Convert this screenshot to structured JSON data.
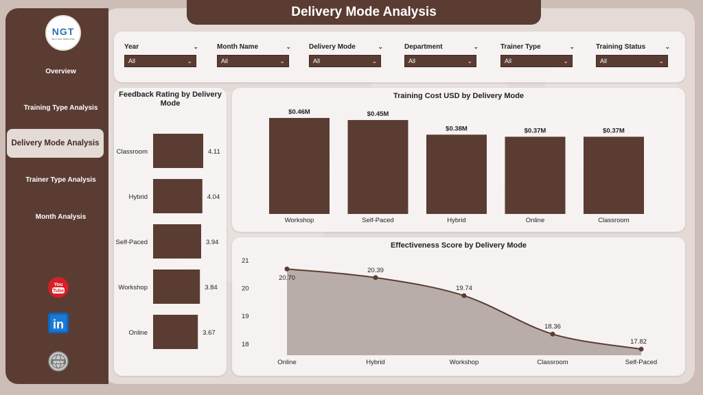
{
  "page_title": "Delivery Mode Analysis",
  "logo": {
    "text": "NGT",
    "subtext": "NEXT GEN TEMPLATES"
  },
  "nav": [
    {
      "label": "Overview",
      "active": false
    },
    {
      "label": "Training Type Analysis",
      "active": false
    },
    {
      "label": "Delivery Mode Analysis",
      "active": true
    },
    {
      "label": "Trainer Type Analysis",
      "active": false
    },
    {
      "label": "Month Analysis",
      "active": false
    }
  ],
  "social": [
    {
      "name": "youtube",
      "label": "You Tube"
    },
    {
      "name": "linkedin",
      "label": "in"
    },
    {
      "name": "website",
      "label": "WWW"
    }
  ],
  "filters": [
    {
      "label": "Year",
      "value": "All"
    },
    {
      "label": "Month Name",
      "value": "All"
    },
    {
      "label": "Delivery Mode",
      "value": "All"
    },
    {
      "label": "Department",
      "value": "All"
    },
    {
      "label": "Trainer Type",
      "value": "All"
    },
    {
      "label": "Training Status",
      "value": "All"
    }
  ],
  "colors": {
    "brand": "#5a3c33",
    "background": "#e4dbd7",
    "area": "#b3a5a1"
  },
  "chart_data": [
    {
      "type": "bar",
      "orientation": "horizontal",
      "title": "Feedback Rating by Delivery Mode",
      "categories": [
        "Classroom",
        "Hybrid",
        "Self-Paced",
        "Workshop",
        "Online"
      ],
      "values": [
        4.11,
        4.04,
        3.94,
        3.84,
        3.67
      ],
      "labels": [
        "4.11",
        "4.04",
        "3.94",
        "3.84",
        "3.67"
      ]
    },
    {
      "type": "bar",
      "title": "Training Cost USD by Delivery Mode",
      "categories": [
        "Workshop",
        "Self-Paced",
        "Hybrid",
        "Online",
        "Classroom"
      ],
      "values": [
        0.46,
        0.45,
        0.38,
        0.37,
        0.37
      ],
      "labels": [
        "$0.46M",
        "$0.45M",
        "$0.38M",
        "$0.37M",
        "$0.37M"
      ]
    },
    {
      "type": "area",
      "title": "Effectiveness Score by Delivery Mode",
      "categories": [
        "Online",
        "Hybrid",
        "Workshop",
        "Classroom",
        "Self-Paced"
      ],
      "values": [
        20.7,
        20.39,
        19.74,
        18.36,
        17.82
      ],
      "labels": [
        "20.70",
        "20.39",
        "19.74",
        "18.36",
        "17.82"
      ],
      "yticks": [
        "21",
        "20",
        "19",
        "18"
      ],
      "ylim": [
        17.6,
        21.1
      ]
    }
  ]
}
